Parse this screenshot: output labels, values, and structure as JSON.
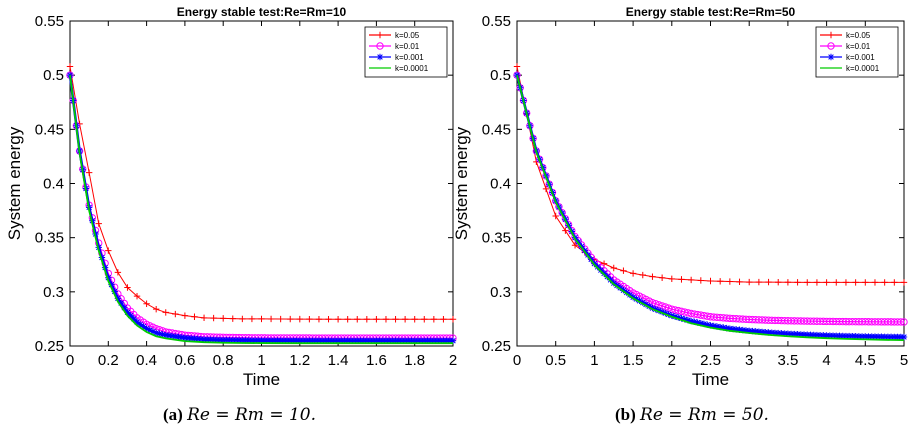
{
  "chart_data": [
    {
      "type": "line",
      "title": "Energy stable test:Re=Rm=10",
      "xlabel": "Time",
      "ylabel": "System energy",
      "xlim": [
        0,
        2
      ],
      "ylim": [
        0.25,
        0.55
      ],
      "xticks": [
        0,
        0.2,
        0.4,
        0.6,
        0.8,
        1,
        1.2,
        1.4,
        1.6,
        1.8,
        2
      ],
      "xtick_labels": [
        "0",
        "0.2",
        "0.4",
        "0.6",
        "0.8",
        "1",
        "1.2",
        "1.4",
        "1.6",
        "1.8",
        "2"
      ],
      "yticks": [
        0.25,
        0.3,
        0.35,
        0.4,
        0.45,
        0.5,
        0.55
      ],
      "ytick_labels": [
        "0.25",
        "0.3",
        "0.35",
        "0.4",
        "0.45",
        "0.5",
        "0.55"
      ],
      "grid": false,
      "legend_position": "top-right",
      "series": [
        {
          "name": "k=0.05",
          "color": "#ff0000",
          "marker": "plus",
          "x": [
            0,
            0.05,
            0.1,
            0.15,
            0.2,
            0.25,
            0.3,
            0.35,
            0.4,
            0.45,
            0.5,
            0.6,
            0.7,
            0.8,
            0.9,
            1.0,
            1.2,
            1.4,
            1.6,
            1.8,
            2.0
          ],
          "y": [
            0.508,
            0.455,
            0.41,
            0.363,
            0.338,
            0.318,
            0.304,
            0.296,
            0.289,
            0.284,
            0.281,
            0.278,
            0.276,
            0.2755,
            0.275,
            0.275,
            0.2748,
            0.2747,
            0.2747,
            0.2747,
            0.2747
          ]
        },
        {
          "name": "k=0.01",
          "color": "#ff00ff",
          "marker": "circle",
          "x": [
            0,
            0.05,
            0.1,
            0.15,
            0.2,
            0.25,
            0.3,
            0.35,
            0.4,
            0.45,
            0.5,
            0.6,
            0.7,
            0.8,
            0.9,
            1.0,
            1.2,
            1.4,
            1.6,
            1.8,
            2.0
          ],
          "y": [
            0.5,
            0.43,
            0.38,
            0.345,
            0.317,
            0.298,
            0.285,
            0.276,
            0.27,
            0.266,
            0.263,
            0.26,
            0.2585,
            0.258,
            0.2577,
            0.2575,
            0.2574,
            0.2573,
            0.2573,
            0.2573,
            0.2573
          ]
        },
        {
          "name": "k=0.001",
          "color": "#0000ff",
          "marker": "asterisk",
          "x": [
            0,
            0.05,
            0.1,
            0.15,
            0.2,
            0.25,
            0.3,
            0.35,
            0.4,
            0.45,
            0.5,
            0.6,
            0.7,
            0.8,
            0.9,
            1.0,
            1.2,
            1.4,
            1.6,
            1.8,
            2.0
          ],
          "y": [
            0.5,
            0.43,
            0.378,
            0.341,
            0.313,
            0.294,
            0.281,
            0.272,
            0.266,
            0.262,
            0.26,
            0.2575,
            0.256,
            0.2555,
            0.2552,
            0.255,
            0.2549,
            0.2549,
            0.2549,
            0.2549,
            0.2549
          ]
        },
        {
          "name": "k=0.0001",
          "color": "#00cc00",
          "marker": "none",
          "x": [
            0,
            0.05,
            0.1,
            0.15,
            0.2,
            0.25,
            0.3,
            0.35,
            0.4,
            0.45,
            0.5,
            0.6,
            0.7,
            0.8,
            0.9,
            1.0,
            1.2,
            1.4,
            1.6,
            1.8,
            2.0
          ],
          "y": [
            0.5,
            0.428,
            0.375,
            0.338,
            0.31,
            0.291,
            0.278,
            0.269,
            0.263,
            0.259,
            0.257,
            0.2545,
            0.2535,
            0.253,
            0.2528,
            0.2527,
            0.2526,
            0.2526,
            0.2526,
            0.2526,
            0.2526
          ]
        }
      ]
    },
    {
      "type": "line",
      "title": "Energy stable test:Re=Rm=50",
      "xlabel": "Time",
      "ylabel": "System energy",
      "xlim": [
        0,
        5
      ],
      "ylim": [
        0.25,
        0.55
      ],
      "xticks": [
        0,
        0.5,
        1,
        1.5,
        2,
        2.5,
        3,
        3.5,
        4,
        4.5,
        5
      ],
      "xtick_labels": [
        "0",
        "0.5",
        "1",
        "1.5",
        "2",
        "2.5",
        "3",
        "3.5",
        "4",
        "4.5",
        "5"
      ],
      "yticks": [
        0.25,
        0.3,
        0.35,
        0.4,
        0.45,
        0.5,
        0.55
      ],
      "ytick_labels": [
        "0.25",
        "0.3",
        "0.35",
        "0.4",
        "0.45",
        "0.5",
        "0.55"
      ],
      "grid": false,
      "legend_position": "top-right",
      "series": [
        {
          "name": "k=0.05",
          "color": "#ff0000",
          "marker": "plus",
          "x": [
            0,
            0.25,
            0.5,
            0.75,
            1.0,
            1.25,
            1.5,
            1.75,
            2.0,
            2.25,
            2.5,
            2.75,
            3.0,
            3.25,
            3.5,
            3.75,
            4.0,
            4.25,
            4.5,
            4.75,
            5.0
          ],
          "y": [
            0.508,
            0.42,
            0.37,
            0.343,
            0.33,
            0.322,
            0.317,
            0.314,
            0.312,
            0.311,
            0.31,
            0.3095,
            0.309,
            0.309,
            0.3088,
            0.3087,
            0.3087,
            0.3087,
            0.3087,
            0.3087,
            0.3087
          ]
        },
        {
          "name": "k=0.01",
          "color": "#ff00ff",
          "marker": "circle",
          "x": [
            0,
            0.25,
            0.5,
            0.75,
            1.0,
            1.25,
            1.5,
            1.75,
            2.0,
            2.25,
            2.5,
            2.75,
            3.0,
            3.25,
            3.5,
            3.75,
            4.0,
            4.25,
            4.5,
            4.75,
            5.0
          ],
          "y": [
            0.5,
            0.43,
            0.384,
            0.351,
            0.328,
            0.311,
            0.299,
            0.29,
            0.284,
            0.28,
            0.277,
            0.2755,
            0.2745,
            0.2738,
            0.2733,
            0.273,
            0.2727,
            0.2725,
            0.2724,
            0.2723,
            0.2722
          ]
        },
        {
          "name": "k=0.001",
          "color": "#0000ff",
          "marker": "asterisk",
          "x": [
            0,
            0.25,
            0.5,
            0.75,
            1.0,
            1.25,
            1.5,
            1.75,
            2.0,
            2.25,
            2.5,
            2.75,
            3.0,
            3.25,
            3.5,
            3.75,
            4.0,
            4.25,
            4.5,
            4.75,
            5.0
          ],
          "y": [
            0.5,
            0.43,
            0.384,
            0.35,
            0.326,
            0.308,
            0.295,
            0.285,
            0.278,
            0.273,
            0.269,
            0.266,
            0.264,
            0.2625,
            0.2613,
            0.2604,
            0.2597,
            0.2592,
            0.2588,
            0.2585,
            0.2583
          ]
        },
        {
          "name": "k=0.0001",
          "color": "#00cc00",
          "marker": "none",
          "x": [
            0,
            0.25,
            0.5,
            0.75,
            1.0,
            1.25,
            1.5,
            1.75,
            2.0,
            2.25,
            2.5,
            2.75,
            3.0,
            3.25,
            3.5,
            3.75,
            4.0,
            4.25,
            4.5,
            4.75,
            5.0
          ],
          "y": [
            0.5,
            0.429,
            0.383,
            0.349,
            0.325,
            0.307,
            0.294,
            0.284,
            0.277,
            0.271,
            0.267,
            0.264,
            0.262,
            0.2603,
            0.259,
            0.258,
            0.2572,
            0.2566,
            0.2561,
            0.2557,
            0.2554
          ]
        }
      ]
    }
  ],
  "captions": [
    {
      "tag": "(a)",
      "math": "Re = Rm = 10."
    },
    {
      "tag": "(b)",
      "math": "Re = Rm = 50."
    }
  ]
}
